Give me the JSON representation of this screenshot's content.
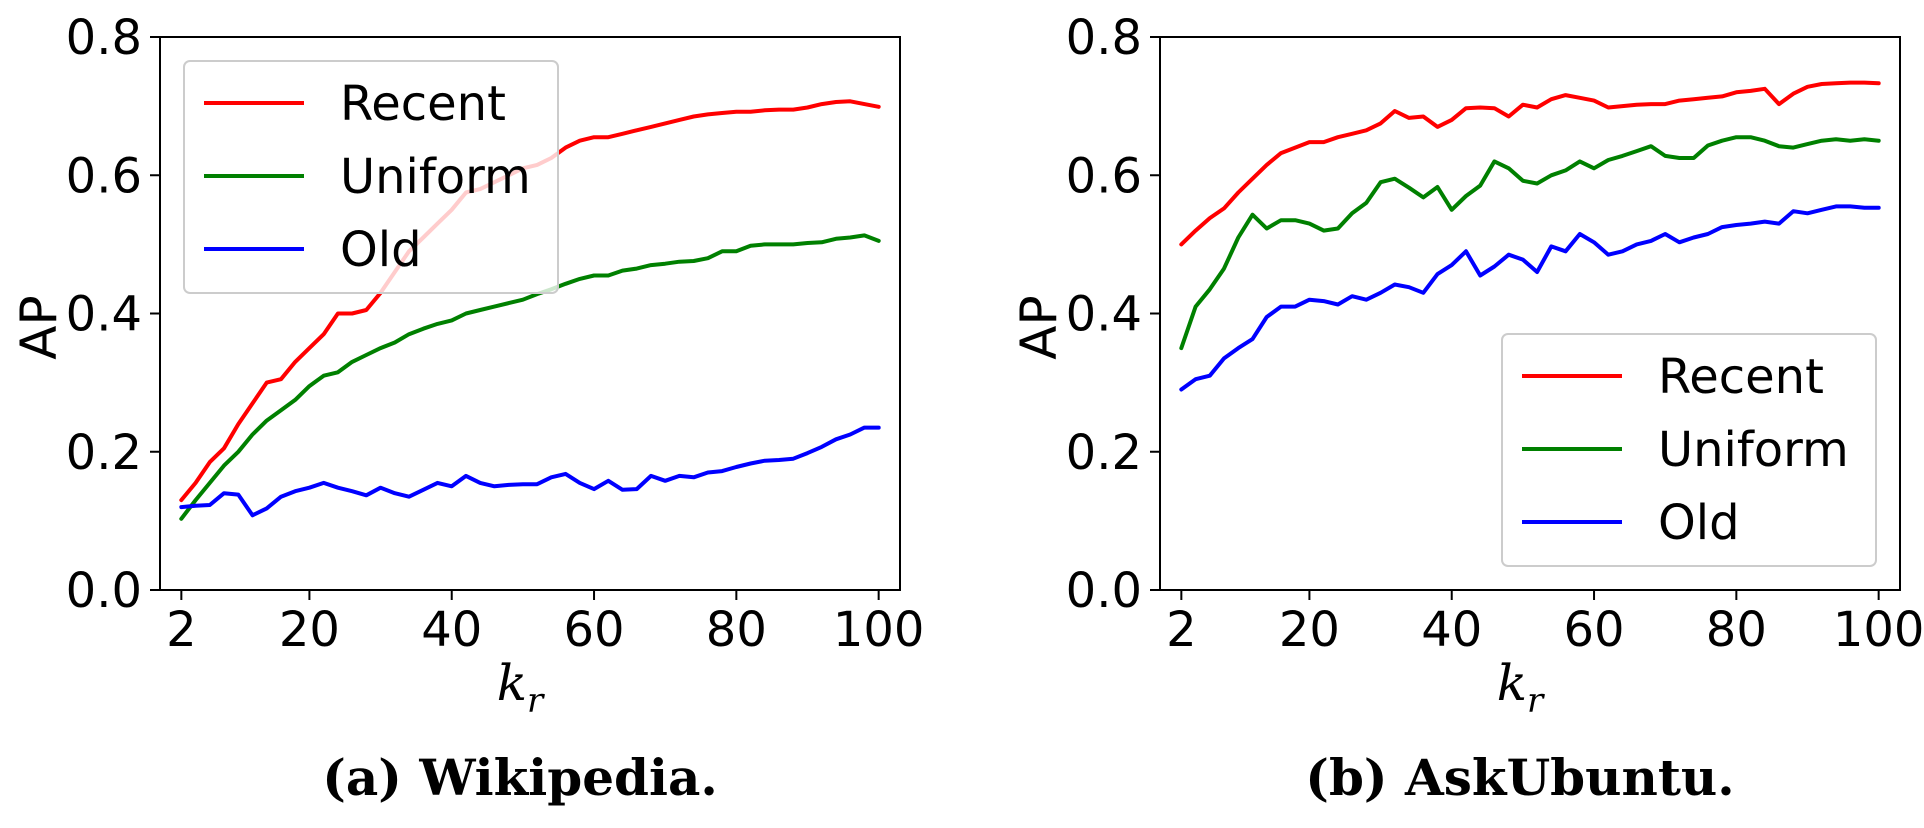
{
  "chart_data": [
    {
      "type": "line",
      "caption": "(a) Wikipedia.",
      "xlabel_base": "k",
      "xlabel_sub": "r",
      "ylabel": "AP",
      "xlim": [
        -1,
        103
      ],
      "ylim": [
        0.0,
        0.8
      ],
      "xticks": [
        2,
        20,
        40,
        60,
        80,
        100
      ],
      "yticks": [
        0.0,
        0.2,
        0.4,
        0.6,
        0.8
      ],
      "ytick_labels": [
        "0.0",
        "0.2",
        "0.4",
        "0.6",
        "0.8"
      ],
      "legend_position": "top-left",
      "x": [
        2,
        4,
        6,
        8,
        10,
        12,
        14,
        16,
        18,
        20,
        22,
        24,
        26,
        28,
        30,
        32,
        34,
        36,
        38,
        40,
        42,
        44,
        46,
        48,
        50,
        52,
        54,
        56,
        58,
        60,
        62,
        64,
        66,
        68,
        70,
        72,
        74,
        76,
        78,
        80,
        82,
        84,
        86,
        88,
        90,
        92,
        94,
        96,
        98,
        100
      ],
      "series": [
        {
          "name": "Recent",
          "color": "#ff0000",
          "values": [
            0.13,
            0.155,
            0.185,
            0.205,
            0.24,
            0.27,
            0.3,
            0.305,
            0.33,
            0.35,
            0.37,
            0.4,
            0.4,
            0.405,
            0.43,
            0.46,
            0.49,
            0.51,
            0.53,
            0.55,
            0.575,
            0.58,
            0.59,
            0.6,
            0.61,
            0.615,
            0.625,
            0.64,
            0.65,
            0.655,
            0.655,
            0.66,
            0.665,
            0.67,
            0.675,
            0.68,
            0.685,
            0.688,
            0.69,
            0.692,
            0.692,
            0.694,
            0.695,
            0.695,
            0.698,
            0.703,
            0.706,
            0.707,
            0.703,
            0.699
          ]
        },
        {
          "name": "Uniform",
          "color": "#008000",
          "values": [
            0.103,
            0.13,
            0.155,
            0.18,
            0.2,
            0.225,
            0.245,
            0.26,
            0.275,
            0.295,
            0.31,
            0.315,
            0.33,
            0.34,
            0.35,
            0.358,
            0.37,
            0.378,
            0.385,
            0.39,
            0.4,
            0.405,
            0.41,
            0.415,
            0.42,
            0.428,
            0.435,
            0.443,
            0.45,
            0.455,
            0.455,
            0.462,
            0.465,
            0.47,
            0.472,
            0.475,
            0.476,
            0.48,
            0.49,
            0.49,
            0.498,
            0.5,
            0.5,
            0.5,
            0.502,
            0.503,
            0.508,
            0.51,
            0.513,
            0.505
          ]
        },
        {
          "name": "Old",
          "color": "#0000ff",
          "values": [
            0.12,
            0.122,
            0.123,
            0.14,
            0.138,
            0.108,
            0.118,
            0.135,
            0.143,
            0.148,
            0.155,
            0.148,
            0.143,
            0.137,
            0.148,
            0.14,
            0.135,
            0.145,
            0.155,
            0.15,
            0.165,
            0.155,
            0.15,
            0.152,
            0.153,
            0.153,
            0.163,
            0.168,
            0.155,
            0.146,
            0.158,
            0.145,
            0.146,
            0.165,
            0.158,
            0.165,
            0.163,
            0.17,
            0.172,
            0.178,
            0.183,
            0.187,
            0.188,
            0.19,
            0.198,
            0.207,
            0.218,
            0.225,
            0.235,
            0.235
          ]
        }
      ]
    },
    {
      "type": "line",
      "caption": "(b) AskUbuntu.",
      "xlabel_base": "k",
      "xlabel_sub": "r",
      "ylabel": "AP",
      "xlim": [
        -1,
        103
      ],
      "ylim": [
        0.0,
        0.8
      ],
      "xticks": [
        2,
        20,
        40,
        60,
        80,
        100
      ],
      "yticks": [
        0.0,
        0.2,
        0.4,
        0.6,
        0.8
      ],
      "ytick_labels": [
        "0.0",
        "0.2",
        "0.4",
        "0.6",
        "0.8"
      ],
      "legend_position": "bottom-right",
      "x": [
        2,
        4,
        6,
        8,
        10,
        12,
        14,
        16,
        18,
        20,
        22,
        24,
        26,
        28,
        30,
        32,
        34,
        36,
        38,
        40,
        42,
        44,
        46,
        48,
        50,
        52,
        54,
        56,
        58,
        60,
        62,
        64,
        66,
        68,
        70,
        72,
        74,
        76,
        78,
        80,
        82,
        84,
        86,
        88,
        90,
        92,
        94,
        96,
        98,
        100
      ],
      "series": [
        {
          "name": "Recent",
          "color": "#ff0000",
          "values": [
            0.5,
            0.52,
            0.538,
            0.552,
            0.575,
            0.595,
            0.615,
            0.632,
            0.64,
            0.648,
            0.648,
            0.655,
            0.66,
            0.665,
            0.675,
            0.693,
            0.683,
            0.685,
            0.67,
            0.68,
            0.697,
            0.698,
            0.697,
            0.685,
            0.702,
            0.698,
            0.71,
            0.716,
            0.712,
            0.708,
            0.698,
            0.7,
            0.702,
            0.703,
            0.703,
            0.708,
            0.71,
            0.712,
            0.714,
            0.72,
            0.722,
            0.725,
            0.703,
            0.718,
            0.728,
            0.732,
            0.733,
            0.734,
            0.734,
            0.733
          ]
        },
        {
          "name": "Uniform",
          "color": "#008000",
          "values": [
            0.35,
            0.41,
            0.435,
            0.465,
            0.51,
            0.543,
            0.523,
            0.535,
            0.535,
            0.53,
            0.52,
            0.523,
            0.545,
            0.56,
            0.59,
            0.595,
            0.582,
            0.568,
            0.583,
            0.55,
            0.57,
            0.585,
            0.62,
            0.61,
            0.592,
            0.588,
            0.6,
            0.607,
            0.62,
            0.61,
            0.622,
            0.628,
            0.635,
            0.642,
            0.628,
            0.625,
            0.625,
            0.643,
            0.65,
            0.655,
            0.655,
            0.65,
            0.642,
            0.64,
            0.645,
            0.65,
            0.652,
            0.65,
            0.652,
            0.65
          ]
        },
        {
          "name": "Old",
          "color": "#0000ff",
          "values": [
            0.29,
            0.305,
            0.31,
            0.335,
            0.35,
            0.363,
            0.395,
            0.41,
            0.41,
            0.42,
            0.418,
            0.413,
            0.425,
            0.42,
            0.43,
            0.442,
            0.438,
            0.43,
            0.457,
            0.47,
            0.49,
            0.455,
            0.468,
            0.485,
            0.478,
            0.46,
            0.497,
            0.49,
            0.515,
            0.503,
            0.485,
            0.49,
            0.5,
            0.505,
            0.515,
            0.503,
            0.51,
            0.515,
            0.525,
            0.528,
            0.53,
            0.533,
            0.53,
            0.548,
            0.545,
            0.55,
            0.555,
            0.555,
            0.553,
            0.553
          ]
        }
      ]
    }
  ]
}
